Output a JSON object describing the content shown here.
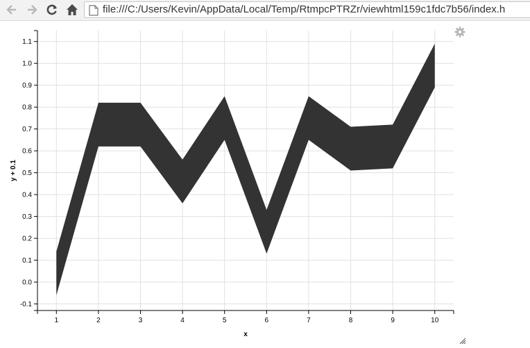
{
  "browser": {
    "url": "file:///C:/Users/Kevin/AppData/Local/Temp/RtmpcPTRZr/viewhtml159c1fdc7b56/index.h",
    "icons": [
      "back-icon",
      "forward-icon",
      "reload-icon",
      "home-icon",
      "document-icon"
    ]
  },
  "toolbar_icons": {
    "settings": "gear-icon",
    "resize": "resize-handle-icon"
  },
  "chart_data": {
    "type": "area",
    "xlabel": "x",
    "ylabel": "y + 0.1",
    "x": [
      1,
      2,
      3,
      4,
      5,
      6,
      7,
      8,
      9,
      10
    ],
    "series": [
      {
        "upper": [
          0.14,
          0.82,
          0.82,
          0.56,
          0.85,
          0.33,
          0.85,
          0.71,
          0.72,
          1.09
        ],
        "lower": [
          -0.06,
          0.62,
          0.62,
          0.36,
          0.65,
          0.13,
          0.65,
          0.51,
          0.52,
          0.89
        ],
        "color": "#333333"
      }
    ],
    "xlim": [
      0.55,
      10.45
    ],
    "ylim": [
      -0.13,
      1.15
    ],
    "xticks": [
      1,
      2,
      3,
      4,
      5,
      6,
      7,
      8,
      9,
      10
    ],
    "yticks": [
      "-0.1",
      "0.0",
      "0.1",
      "0.2",
      "0.3",
      "0.4",
      "0.5",
      "0.6",
      "0.7",
      "0.8",
      "0.9",
      "1.0",
      "1.1"
    ],
    "grid": true,
    "gridColor": "#e0e0e0",
    "axisColor": "#000000"
  }
}
